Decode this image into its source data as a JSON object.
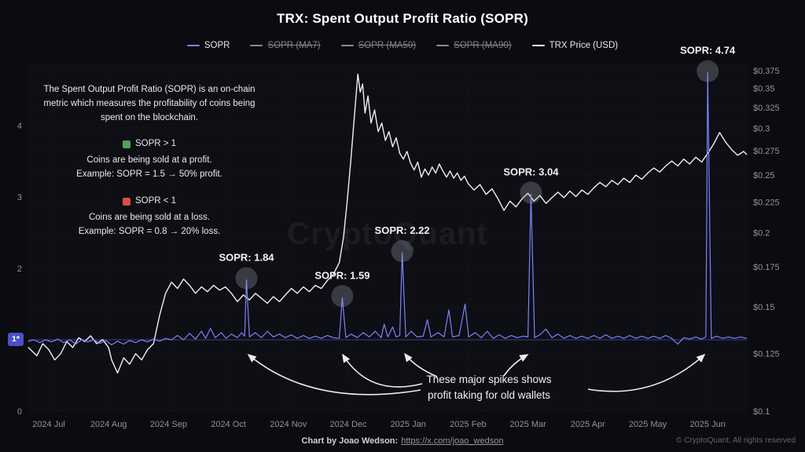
{
  "title": "TRX: Spent Output Profit Ratio (SOPR)",
  "watermark": "CryptoQuant",
  "legend": {
    "items": [
      {
        "label": "SOPR",
        "color": "#7b83f7",
        "strikethrough": false
      },
      {
        "label": "SOPR (MA7)",
        "color": "#8a8a94",
        "strikethrough": true
      },
      {
        "label": "SOPR (MA50)",
        "color": "#8a8a94",
        "strikethrough": true
      },
      {
        "label": "SOPR (MA90)",
        "color": "#8a8a94",
        "strikethrough": true
      },
      {
        "label": "TRX Price (USD)",
        "color": "#f0f0f2",
        "strikethrough": false
      }
    ]
  },
  "info_box": {
    "intro": "The Spent Output Profit Ratio (SOPR) is an on-chain metric which measures the profitability of coins being spent on the blockchain.",
    "profit": {
      "title": "SOPR > 1",
      "line1": "Coins are being sold at a profit.",
      "line2": "Example: SOPR = 1.5 → 50% profit.",
      "color": "#55a05a"
    },
    "loss": {
      "title": "SOPR < 1",
      "line1": "Coins are being sold at a loss.",
      "line2": "Example: SOPR = 0.8 → 20% loss.",
      "color": "#e04b42"
    }
  },
  "annotations": {
    "note_line1": "These major spikes shows",
    "note_line2": "profit taking for old wallets"
  },
  "footer": {
    "credit_label": "Chart by Joao Wedson:",
    "credit_link": "https://x.com/joao_wedson",
    "copyright": "© CryptoQuant. All rights reserved"
  },
  "chart_data": {
    "type": "line",
    "title": "TRX: Spent Output Profit Ratio (SOPR)",
    "x_unit": "months since 2024-07",
    "x_tick_labels": [
      "2024 Jul",
      "2024 Aug",
      "2024 Sep",
      "2024 Oct",
      "2024 Nov",
      "2024 Dec",
      "2025 Jan",
      "2025 Feb",
      "2025 Mar",
      "2025 Apr",
      "2025 May",
      "2025 Jun"
    ],
    "grid": "dotted",
    "legend_position": "top",
    "left_axis": {
      "label": "SOPR",
      "scale": "linear",
      "ticks": [
        0,
        1,
        2,
        3,
        4
      ],
      "range": [
        0,
        4.82
      ],
      "highlight_value": 1,
      "highlight_label": "1*"
    },
    "right_axis": {
      "label": "TRX Price (USD)",
      "scale": "log",
      "range": [
        0.1,
        0.375
      ],
      "tick_values": [
        0.375,
        0.35,
        0.325,
        0.3,
        0.275,
        0.25,
        0.225,
        0.2,
        0.175,
        0.15,
        0.125,
        0.1
      ],
      "tick_labels": [
        "$0.375",
        "$0.35",
        "$0.325",
        "$0.3",
        "$0.275",
        "$0.25",
        "$0.225",
        "$0.2",
        "$0.175",
        "$0.15",
        "$0.125",
        "$0.1"
      ]
    },
    "series": [
      {
        "name": "TRX Price (USD)",
        "color": "#f0f0f2",
        "axis": "right",
        "points": [
          [
            -0.34,
            0.128
          ],
          [
            -0.2,
            0.124
          ],
          [
            -0.1,
            0.13
          ],
          [
            0,
            0.127
          ],
          [
            0.1,
            0.122
          ],
          [
            0.2,
            0.125
          ],
          [
            0.3,
            0.131
          ],
          [
            0.4,
            0.128
          ],
          [
            0.5,
            0.133
          ],
          [
            0.6,
            0.131
          ],
          [
            0.7,
            0.134
          ],
          [
            0.8,
            0.13
          ],
          [
            0.9,
            0.132
          ],
          [
            1.0,
            0.128
          ],
          [
            1.05,
            0.122
          ],
          [
            1.15,
            0.116
          ],
          [
            1.25,
            0.123
          ],
          [
            1.35,
            0.12
          ],
          [
            1.45,
            0.125
          ],
          [
            1.55,
            0.122
          ],
          [
            1.65,
            0.127
          ],
          [
            1.75,
            0.13
          ],
          [
            1.85,
            0.145
          ],
          [
            1.95,
            0.158
          ],
          [
            2.05,
            0.165
          ],
          [
            2.15,
            0.161
          ],
          [
            2.25,
            0.167
          ],
          [
            2.35,
            0.163
          ],
          [
            2.45,
            0.158
          ],
          [
            2.55,
            0.162
          ],
          [
            2.65,
            0.159
          ],
          [
            2.75,
            0.163
          ],
          [
            2.85,
            0.16
          ],
          [
            2.95,
            0.162
          ],
          [
            3.05,
            0.158
          ],
          [
            3.15,
            0.153
          ],
          [
            3.25,
            0.157
          ],
          [
            3.35,
            0.154
          ],
          [
            3.45,
            0.158
          ],
          [
            3.55,
            0.155
          ],
          [
            3.65,
            0.152
          ],
          [
            3.75,
            0.156
          ],
          [
            3.85,
            0.153
          ],
          [
            3.95,
            0.157
          ],
          [
            4.05,
            0.161
          ],
          [
            4.15,
            0.158
          ],
          [
            4.25,
            0.162
          ],
          [
            4.35,
            0.159
          ],
          [
            4.45,
            0.163
          ],
          [
            4.55,
            0.161
          ],
          [
            4.65,
            0.166
          ],
          [
            4.75,
            0.17
          ],
          [
            4.85,
            0.178
          ],
          [
            4.92,
            0.196
          ],
          [
            4.98,
            0.225
          ],
          [
            5.04,
            0.262
          ],
          [
            5.1,
            0.312
          ],
          [
            5.16,
            0.37
          ],
          [
            5.2,
            0.345
          ],
          [
            5.24,
            0.356
          ],
          [
            5.28,
            0.318
          ],
          [
            5.33,
            0.34
          ],
          [
            5.38,
            0.306
          ],
          [
            5.44,
            0.322
          ],
          [
            5.5,
            0.296
          ],
          [
            5.56,
            0.306
          ],
          [
            5.62,
            0.286
          ],
          [
            5.68,
            0.296
          ],
          [
            5.74,
            0.279
          ],
          [
            5.8,
            0.289
          ],
          [
            5.86,
            0.272
          ],
          [
            5.92,
            0.266
          ],
          [
            5.98,
            0.274
          ],
          [
            6.04,
            0.262
          ],
          [
            6.1,
            0.255
          ],
          [
            6.16,
            0.263
          ],
          [
            6.22,
            0.248
          ],
          [
            6.28,
            0.256
          ],
          [
            6.34,
            0.25
          ],
          [
            6.4,
            0.258
          ],
          [
            6.46,
            0.252
          ],
          [
            6.52,
            0.261
          ],
          [
            6.58,
            0.254
          ],
          [
            6.64,
            0.248
          ],
          [
            6.7,
            0.254
          ],
          [
            6.76,
            0.247
          ],
          [
            6.82,
            0.252
          ],
          [
            6.88,
            0.245
          ],
          [
            6.94,
            0.249
          ],
          [
            7.0,
            0.242
          ],
          [
            7.1,
            0.236
          ],
          [
            7.2,
            0.241
          ],
          [
            7.3,
            0.232
          ],
          [
            7.4,
            0.237
          ],
          [
            7.5,
            0.228
          ],
          [
            7.6,
            0.218
          ],
          [
            7.7,
            0.226
          ],
          [
            7.8,
            0.221
          ],
          [
            7.9,
            0.228
          ],
          [
            8.0,
            0.233
          ],
          [
            8.1,
            0.226
          ],
          [
            8.2,
            0.231
          ],
          [
            8.3,
            0.224
          ],
          [
            8.4,
            0.229
          ],
          [
            8.5,
            0.234
          ],
          [
            8.6,
            0.229
          ],
          [
            8.7,
            0.235
          ],
          [
            8.8,
            0.23
          ],
          [
            8.9,
            0.236
          ],
          [
            9.0,
            0.232
          ],
          [
            9.1,
            0.238
          ],
          [
            9.2,
            0.243
          ],
          [
            9.3,
            0.239
          ],
          [
            9.4,
            0.245
          ],
          [
            9.5,
            0.241
          ],
          [
            9.6,
            0.247
          ],
          [
            9.7,
            0.243
          ],
          [
            9.8,
            0.25
          ],
          [
            9.9,
            0.246
          ],
          [
            10.0,
            0.252
          ],
          [
            10.1,
            0.257
          ],
          [
            10.2,
            0.253
          ],
          [
            10.3,
            0.259
          ],
          [
            10.4,
            0.264
          ],
          [
            10.5,
            0.259
          ],
          [
            10.6,
            0.266
          ],
          [
            10.7,
            0.261
          ],
          [
            10.8,
            0.268
          ],
          [
            10.9,
            0.263
          ],
          [
            11.0,
            0.272
          ],
          [
            11.1,
            0.282
          ],
          [
            11.2,
            0.295
          ],
          [
            11.3,
            0.284
          ],
          [
            11.4,
            0.276
          ],
          [
            11.5,
            0.27
          ],
          [
            11.6,
            0.274
          ],
          [
            11.65,
            0.271
          ]
        ]
      },
      {
        "name": "SOPR",
        "color": "#7b83f7",
        "axis": "left",
        "points": [
          [
            -0.34,
            0.98
          ],
          [
            -0.25,
            1.0
          ],
          [
            -0.15,
            0.96
          ],
          [
            -0.05,
            1.0
          ],
          [
            0.05,
            0.97
          ],
          [
            0.15,
            1.01
          ],
          [
            0.25,
            0.96
          ],
          [
            0.35,
            1.0
          ],
          [
            0.45,
            0.94
          ],
          [
            0.55,
            1.0
          ],
          [
            0.65,
            0.97
          ],
          [
            0.75,
            1.0
          ],
          [
            0.85,
            0.95
          ],
          [
            0.95,
            0.99
          ],
          [
            1.05,
            0.93
          ],
          [
            1.15,
            0.98
          ],
          [
            1.25,
            0.94
          ],
          [
            1.35,
            0.99
          ],
          [
            1.45,
            0.96
          ],
          [
            1.55,
            1.0
          ],
          [
            1.65,
            0.97
          ],
          [
            1.75,
            1.01
          ],
          [
            1.85,
            0.98
          ],
          [
            1.95,
            1.02
          ],
          [
            2.05,
            1.0
          ],
          [
            2.15,
            1.06
          ],
          [
            2.25,
            1.0
          ],
          [
            2.35,
            1.09
          ],
          [
            2.45,
            1.01
          ],
          [
            2.55,
            1.12
          ],
          [
            2.62,
            1.02
          ],
          [
            2.7,
            1.16
          ],
          [
            2.78,
            1.03
          ],
          [
            2.88,
            1.1
          ],
          [
            2.96,
            1.02
          ],
          [
            3.05,
            1.08
          ],
          [
            3.15,
            1.03
          ],
          [
            3.22,
            1.1
          ],
          [
            3.27,
            1.05
          ],
          [
            3.3,
            1.84
          ],
          [
            3.35,
            1.04
          ],
          [
            3.45,
            1.1
          ],
          [
            3.55,
            1.03
          ],
          [
            3.65,
            1.12
          ],
          [
            3.75,
            1.04
          ],
          [
            3.85,
            1.08
          ],
          [
            3.95,
            1.03
          ],
          [
            4.05,
            1.07
          ],
          [
            4.15,
            1.02
          ],
          [
            4.25,
            1.06
          ],
          [
            4.35,
            1.02
          ],
          [
            4.45,
            1.05
          ],
          [
            4.55,
            1.02
          ],
          [
            4.65,
            1.06
          ],
          [
            4.75,
            1.03
          ],
          [
            4.85,
            1.02
          ],
          [
            4.9,
            1.59
          ],
          [
            4.96,
            1.03
          ],
          [
            5.05,
            1.08
          ],
          [
            5.15,
            1.03
          ],
          [
            5.25,
            1.1
          ],
          [
            5.35,
            1.04
          ],
          [
            5.45,
            1.12
          ],
          [
            5.55,
            1.03
          ],
          [
            5.6,
            1.22
          ],
          [
            5.66,
            1.04
          ],
          [
            5.74,
            1.18
          ],
          [
            5.8,
            1.04
          ],
          [
            5.86,
            1.06
          ],
          [
            5.9,
            2.22
          ],
          [
            5.96,
            1.04
          ],
          [
            6.05,
            1.12
          ],
          [
            6.15,
            1.04
          ],
          [
            6.25,
            1.05
          ],
          [
            6.32,
            1.28
          ],
          [
            6.38,
            1.04
          ],
          [
            6.5,
            1.1
          ],
          [
            6.6,
            1.04
          ],
          [
            6.68,
            1.42
          ],
          [
            6.74,
            1.04
          ],
          [
            6.85,
            1.06
          ],
          [
            6.95,
            1.5
          ],
          [
            7.01,
            1.04
          ],
          [
            7.12,
            1.1
          ],
          [
            7.22,
            1.03
          ],
          [
            7.32,
            1.12
          ],
          [
            7.42,
            1.02
          ],
          [
            7.52,
            1.07
          ],
          [
            7.62,
            1.02
          ],
          [
            7.72,
            1.06
          ],
          [
            7.82,
            1.03
          ],
          [
            7.92,
            1.05
          ],
          [
            8.0,
            1.04
          ],
          [
            8.05,
            3.04
          ],
          [
            8.11,
            1.03
          ],
          [
            8.2,
            1.07
          ],
          [
            8.3,
            1.15
          ],
          [
            8.4,
            1.03
          ],
          [
            8.5,
            1.08
          ],
          [
            8.6,
            1.02
          ],
          [
            8.7,
            1.06
          ],
          [
            8.8,
            1.02
          ],
          [
            8.9,
            1.05
          ],
          [
            9.0,
            1.02
          ],
          [
            9.1,
            1.06
          ],
          [
            9.2,
            1.02
          ],
          [
            9.3,
            1.07
          ],
          [
            9.4,
            1.02
          ],
          [
            9.5,
            1.05
          ],
          [
            9.6,
            1.02
          ],
          [
            9.7,
            1.06
          ],
          [
            9.8,
            1.02
          ],
          [
            9.9,
            1.05
          ],
          [
            10.0,
            1.02
          ],
          [
            10.1,
            1.05
          ],
          [
            10.2,
            1.02
          ],
          [
            10.3,
            1.06
          ],
          [
            10.4,
            1.02
          ],
          [
            10.5,
            0.94
          ],
          [
            10.6,
            1.03
          ],
          [
            10.7,
            1.01
          ],
          [
            10.8,
            1.04
          ],
          [
            10.9,
            1.01
          ],
          [
            10.97,
            1.04
          ],
          [
            11.0,
            4.74
          ],
          [
            11.06,
            1.02
          ],
          [
            11.15,
            1.05
          ],
          [
            11.25,
            1.02
          ],
          [
            11.35,
            1.04
          ],
          [
            11.45,
            1.02
          ],
          [
            11.55,
            1.04
          ],
          [
            11.65,
            1.02
          ]
        ]
      }
    ],
    "spike_labels": [
      {
        "label": "SOPR: 1.84",
        "month": 3.3,
        "value": 1.84
      },
      {
        "label": "SOPR: 1.59",
        "month": 4.9,
        "value": 1.59
      },
      {
        "label": "SOPR: 2.22",
        "month": 5.9,
        "value": 2.22
      },
      {
        "label": "SOPR: 3.04",
        "month": 8.05,
        "value": 3.04
      },
      {
        "label": "SOPR: 4.74",
        "month": 11.0,
        "value": 4.74
      }
    ]
  }
}
